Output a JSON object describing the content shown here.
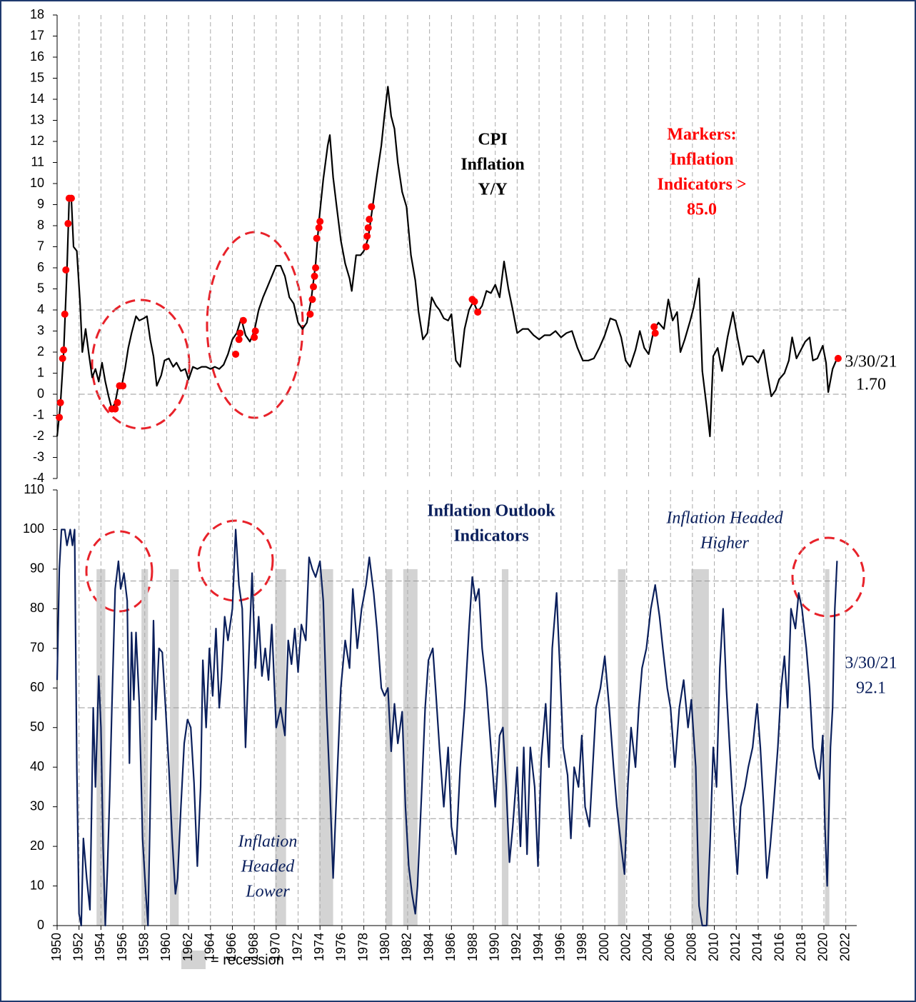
{
  "chart_data": [
    {
      "type": "line",
      "color": "#000000",
      "annotations": [
        [
          "CPI",
          "Inflation",
          "Y/Y"
        ],
        [
          "Markers:",
          "Inflation",
          "Indicators >",
          "85.0"
        ],
        [
          "3/30/21",
          "1.70"
        ]
      ],
      "xlim": [
        1950,
        2023
      ],
      "xticks": [
        1950,
        1952,
        1954,
        1956,
        1958,
        1960,
        1962,
        1964,
        1966,
        1968,
        1970,
        1972,
        1974,
        1976,
        1978,
        1980,
        1982,
        1984,
        1986,
        1988,
        1990,
        1992,
        1994,
        1996,
        1998,
        2000,
        2002,
        2004,
        2006,
        2008,
        2010,
        2012,
        2014,
        2016,
        2018,
        2020,
        2022
      ],
      "ylim": [
        -4,
        18
      ],
      "yticks": [
        -4,
        -3,
        -2,
        -1,
        0,
        1,
        2,
        3,
        4,
        5,
        6,
        7,
        8,
        9,
        10,
        11,
        12,
        13,
        14,
        15,
        16,
        17,
        18
      ],
      "reference_lines": [
        4,
        0
      ],
      "x": [
        1950.0,
        1950.3,
        1950.6,
        1950.9,
        1951.1,
        1951.3,
        1951.5,
        1951.8,
        1952.1,
        1952.3,
        1952.6,
        1952.9,
        1953.2,
        1953.5,
        1953.8,
        1954.1,
        1954.4,
        1954.7,
        1955.0,
        1955.3,
        1955.6,
        1955.9,
        1956.2,
        1956.5,
        1956.8,
        1957.2,
        1957.5,
        1957.9,
        1958.2,
        1958.5,
        1958.8,
        1959.1,
        1959.5,
        1959.8,
        1960.2,
        1960.6,
        1960.9,
        1961.3,
        1961.7,
        1962.0,
        1962.4,
        1962.8,
        1963.2,
        1963.6,
        1964.0,
        1964.4,
        1964.8,
        1965.2,
        1965.6,
        1966.0,
        1966.4,
        1966.8,
        1967.2,
        1967.6,
        1968.0,
        1968.4,
        1968.8,
        1969.2,
        1969.6,
        1970.0,
        1970.4,
        1970.8,
        1971.2,
        1971.6,
        1972.0,
        1972.4,
        1972.8,
        1973.2,
        1973.6,
        1973.9,
        1974.3,
        1974.7,
        1974.9,
        1975.2,
        1975.5,
        1975.9,
        1976.3,
        1976.7,
        1976.9,
        1977.3,
        1977.7,
        1978.0,
        1978.4,
        1978.8,
        1979.2,
        1979.6,
        1979.9,
        1980.2,
        1980.5,
        1980.8,
        1981.1,
        1981.5,
        1981.9,
        1982.3,
        1982.7,
        1983.0,
        1983.4,
        1983.8,
        1984.2,
        1984.6,
        1984.9,
        1985.3,
        1985.7,
        1986.0,
        1986.4,
        1986.8,
        1987.2,
        1987.6,
        1988.0,
        1988.4,
        1988.8,
        1989.2,
        1989.6,
        1990.0,
        1990.4,
        1990.8,
        1991.2,
        1991.6,
        1992.0,
        1992.5,
        1993.0,
        1993.5,
        1994.0,
        1994.5,
        1995.0,
        1995.5,
        1996.0,
        1996.5,
        1997.0,
        1997.5,
        1998.0,
        1998.5,
        1999.0,
        1999.5,
        2000.0,
        2000.5,
        2001.0,
        2001.5,
        2001.9,
        2002.3,
        2002.8,
        2003.2,
        2003.6,
        2004.0,
        2004.5,
        2004.9,
        2005.4,
        2005.8,
        2006.2,
        2006.6,
        2006.9,
        2007.3,
        2007.8,
        2008.1,
        2008.6,
        2008.9,
        2009.3,
        2009.6,
        2009.9,
        2010.3,
        2010.7,
        2011.2,
        2011.7,
        2012.1,
        2012.6,
        2013.0,
        2013.5,
        2014.0,
        2014.5,
        2014.9,
        2015.2,
        2015.6,
        2015.9,
        2016.4,
        2016.8,
        2017.1,
        2017.5,
        2017.9,
        2018.3,
        2018.7,
        2019.0,
        2019.4,
        2019.9,
        2020.2,
        2020.4,
        2020.8,
        2021.2
      ],
      "values": [
        -2.0,
        -0.5,
        2,
        5.9,
        9.3,
        9.3,
        7,
        6.8,
        4.3,
        2,
        3.1,
        1.9,
        0.8,
        1.2,
        0.6,
        1.5,
        0.6,
        -0.1,
        -0.7,
        -0.4,
        0.4,
        0.4,
        1.2,
        2.2,
        2.9,
        3.7,
        3.5,
        3.6,
        3.7,
        2.6,
        1.8,
        0.4,
        0.9,
        1.6,
        1.7,
        1.3,
        1.5,
        1.1,
        1.2,
        0.7,
        1.3,
        1.2,
        1.3,
        1.3,
        1.2,
        1.3,
        1.2,
        1.4,
        1.9,
        2.6,
        2.9,
        3.6,
        2.8,
        2.5,
        3.0,
        4.0,
        4.6,
        5.1,
        5.6,
        6.1,
        6.1,
        5.6,
        4.6,
        4.3,
        3.4,
        3.1,
        3.4,
        4.5,
        6.2,
        8.2,
        10.2,
        11.8,
        12.3,
        10.3,
        9.0,
        7.3,
        6.2,
        5.5,
        4.9,
        6.6,
        6.6,
        6.8,
        7.4,
        8.9,
        10.4,
        11.8,
        13.3,
        14.6,
        13.2,
        12.6,
        11.0,
        9.6,
        8.9,
        6.6,
        5.4,
        3.9,
        2.6,
        2.9,
        4.6,
        4.2,
        4.0,
        3.6,
        3.5,
        3.8,
        1.6,
        1.3,
        3.1,
        4.0,
        4.4,
        3.9,
        4.2,
        4.9,
        4.8,
        5.2,
        4.6,
        6.3,
        5.0,
        4.0,
        2.9,
        3.1,
        3.1,
        2.8,
        2.6,
        2.8,
        2.8,
        3.0,
        2.7,
        2.9,
        3.0,
        2.2,
        1.6,
        1.6,
        1.7,
        2.2,
        2.8,
        3.6,
        3.5,
        2.7,
        1.6,
        1.3,
        2.1,
        3.0,
        2.2,
        1.9,
        3.1,
        3.4,
        3.1,
        4.5,
        3.5,
        3.9,
        2.0,
        2.6,
        3.5,
        4.1,
        5.5,
        1.1,
        -0.6,
        -2.0,
        1.8,
        2.2,
        1.1,
        2.7,
        3.9,
        2.7,
        1.4,
        1.8,
        1.8,
        1.5,
        2.1,
        0.8,
        -0.1,
        0.2,
        0.7,
        1.0,
        1.6,
        2.7,
        1.7,
        2.1,
        2.5,
        2.7,
        1.6,
        1.7,
        2.3,
        1.5,
        0.1,
        1.2,
        1.7
      ],
      "markers": {
        "color": "#ff0000",
        "x": [
          1950.2,
          1950.3,
          1950.5,
          1950.6,
          1950.7,
          1950.8,
          1951.0,
          1951.1,
          1951.3,
          1955.0,
          1955.3,
          1955.5,
          1955.7,
          1956.0,
          1966.3,
          1966.6,
          1966.7,
          1967.0,
          1968.0,
          1968.1,
          1973.1,
          1973.3,
          1973.4,
          1973.5,
          1973.6,
          1973.7,
          1973.9,
          1974.0,
          1978.2,
          1978.3,
          1978.4,
          1978.5,
          1978.7,
          1987.9,
          1988.1,
          1988.4,
          2004.5,
          2004.6,
          2021.3
        ],
        "values": [
          -1.1,
          -0.4,
          1.7,
          2.1,
          3.8,
          5.9,
          8.1,
          9.3,
          9.3,
          -0.7,
          -0.7,
          -0.4,
          0.4,
          0.4,
          1.9,
          2.6,
          2.9,
          3.5,
          2.7,
          3.0,
          3.8,
          4.5,
          5.1,
          5.6,
          6.0,
          7.4,
          7.9,
          8.2,
          7.0,
          7.5,
          7.9,
          8.3,
          8.9,
          4.5,
          4.4,
          3.9,
          3.2,
          2.9,
          1.7
        ]
      }
    },
    {
      "type": "line",
      "color": "#0a1f5c",
      "annotations": [
        [
          "Inflation Outlook",
          "Indicators"
        ],
        [
          "Inflation Headed",
          "Higher"
        ],
        [
          "Inflation",
          "Headed",
          "Lower"
        ],
        [
          "3/30/21",
          "92.1"
        ]
      ],
      "legend_label": "= recession",
      "xlim": [
        1950,
        2023
      ],
      "xticks": [
        1950,
        1952,
        1954,
        1956,
        1958,
        1960,
        1962,
        1964,
        1966,
        1968,
        1970,
        1972,
        1974,
        1976,
        1978,
        1980,
        1982,
        1984,
        1986,
        1988,
        1990,
        1992,
        1994,
        1996,
        1998,
        2000,
        2002,
        2004,
        2006,
        2008,
        2010,
        2012,
        2014,
        2016,
        2018,
        2020,
        2022
      ],
      "ylim": [
        0,
        110
      ],
      "yticks": [
        0,
        10,
        20,
        30,
        40,
        50,
        60,
        70,
        80,
        90,
        100,
        110
      ],
      "reference_lines": [
        87,
        55,
        27
      ],
      "recession_top": 90,
      "recessions": [
        [
          1953.6,
          1954.4
        ],
        [
          1957.7,
          1958.3
        ],
        [
          1960.3,
          1961.1
        ],
        [
          1969.9,
          1970.9
        ],
        [
          1973.9,
          1975.2
        ],
        [
          1980.0,
          1980.6
        ],
        [
          1981.6,
          1982.9
        ],
        [
          1990.6,
          1991.2
        ],
        [
          2001.2,
          2001.9
        ],
        [
          2007.9,
          2009.5
        ],
        [
          2020.1,
          2020.5
        ]
      ],
      "x": [
        1950.0,
        1950.2,
        1950.4,
        1950.7,
        1950.9,
        1951.2,
        1951.4,
        1951.6,
        1951.8,
        1952.0,
        1952.2,
        1952.4,
        1952.7,
        1953.0,
        1953.3,
        1953.5,
        1953.8,
        1954.0,
        1954.2,
        1954.4,
        1954.6,
        1954.8,
        1955.0,
        1955.3,
        1955.6,
        1955.8,
        1956.1,
        1956.4,
        1956.6,
        1956.8,
        1957.0,
        1957.2,
        1957.5,
        1957.8,
        1958.1,
        1958.3,
        1958.5,
        1958.8,
        1959.0,
        1959.3,
        1959.6,
        1959.9,
        1960.2,
        1960.5,
        1960.8,
        1961.0,
        1961.3,
        1961.6,
        1961.9,
        1962.2,
        1962.5,
        1962.8,
        1963.1,
        1963.3,
        1963.6,
        1963.9,
        1964.2,
        1964.5,
        1964.8,
        1965.0,
        1965.3,
        1965.6,
        1966.0,
        1966.3,
        1966.6,
        1966.9,
        1967.2,
        1967.5,
        1967.8,
        1968.1,
        1968.4,
        1968.7,
        1969.0,
        1969.3,
        1969.6,
        1970.0,
        1970.4,
        1970.8,
        1971.1,
        1971.4,
        1971.7,
        1972.0,
        1972.3,
        1972.7,
        1973.0,
        1973.3,
        1973.6,
        1974.0,
        1974.3,
        1974.6,
        1974.9,
        1975.2,
        1975.6,
        1975.9,
        1976.3,
        1976.7,
        1977.0,
        1977.4,
        1977.8,
        1978.2,
        1978.5,
        1978.9,
        1979.2,
        1979.6,
        1979.9,
        1980.2,
        1980.5,
        1980.8,
        1981.1,
        1981.5,
        1981.8,
        1982.1,
        1982.4,
        1982.7,
        1982.9,
        1983.3,
        1983.6,
        1983.9,
        1984.3,
        1984.6,
        1984.9,
        1985.3,
        1985.7,
        1986.0,
        1986.4,
        1986.8,
        1987.2,
        1987.6,
        1987.9,
        1988.2,
        1988.5,
        1988.8,
        1989.2,
        1989.6,
        1990.0,
        1990.4,
        1990.7,
        1991.0,
        1991.3,
        1991.6,
        1992.0,
        1992.3,
        1992.6,
        1992.9,
        1993.2,
        1993.6,
        1993.9,
        1994.2,
        1994.6,
        1994.9,
        1995.2,
        1995.6,
        1995.9,
        1996.2,
        1996.6,
        1996.9,
        1997.2,
        1997.6,
        1997.9,
        1998.2,
        1998.6,
        1998.9,
        1999.2,
        1999.6,
        2000.0,
        2000.4,
        2000.8,
        2001.1,
        2001.5,
        2001.8,
        2002.1,
        2002.4,
        2002.8,
        2003.1,
        2003.4,
        2003.8,
        2004.2,
        2004.6,
        2005.0,
        2005.3,
        2005.7,
        2006.0,
        2006.4,
        2006.8,
        2007.2,
        2007.6,
        2007.9,
        2008.3,
        2008.6,
        2008.9,
        2009.3,
        2009.6,
        2009.9,
        2010.2,
        2010.5,
        2010.8,
        2011.1,
        2011.4,
        2011.8,
        2012.1,
        2012.4,
        2012.8,
        2013.1,
        2013.5,
        2013.9,
        2014.2,
        2014.5,
        2014.8,
        2015.1,
        2015.4,
        2015.8,
        2016.1,
        2016.4,
        2016.7,
        2017.0,
        2017.4,
        2017.7,
        2018.0,
        2018.4,
        2018.7,
        2019.0,
        2019.3,
        2019.6,
        2019.9,
        2020.1,
        2020.3,
        2020.6,
        2020.8,
        2021.0,
        2021.2
      ],
      "values": [
        62,
        90,
        100,
        100,
        96,
        100,
        96,
        100,
        40,
        3,
        0,
        22,
        12,
        4,
        55,
        35,
        63,
        50,
        20,
        0,
        15,
        33,
        55,
        85,
        92,
        85,
        89,
        82,
        41,
        74,
        57,
        74,
        56,
        22,
        8,
        0,
        30,
        77,
        52,
        70,
        69,
        55,
        40,
        22,
        8,
        12,
        30,
        46,
        52,
        50,
        36,
        15,
        35,
        67,
        50,
        70,
        58,
        75,
        55,
        62,
        78,
        72,
        80,
        100,
        86,
        80,
        45,
        68,
        89,
        65,
        78,
        63,
        70,
        62,
        76,
        50,
        55,
        48,
        72,
        66,
        75,
        64,
        76,
        72,
        93,
        90,
        88,
        92,
        82,
        55,
        35,
        12,
        40,
        60,
        72,
        65,
        85,
        70,
        80,
        86,
        93,
        84,
        75,
        60,
        58,
        60,
        44,
        56,
        46,
        54,
        30,
        15,
        8,
        3,
        10,
        35,
        55,
        67,
        70,
        58,
        45,
        30,
        45,
        25,
        18,
        40,
        55,
        75,
        88,
        82,
        85,
        70,
        60,
        45,
        30,
        48,
        50,
        35,
        16,
        25,
        40,
        20,
        45,
        18,
        45,
        35,
        15,
        42,
        56,
        40,
        70,
        84,
        65,
        45,
        38,
        22,
        40,
        35,
        48,
        30,
        25,
        40,
        55,
        60,
        68,
        55,
        40,
        30,
        20,
        13,
        35,
        50,
        40,
        55,
        65,
        70,
        80,
        86,
        78,
        70,
        60,
        55,
        40,
        55,
        62,
        50,
        57,
        40,
        5,
        0,
        0,
        20,
        45,
        35,
        65,
        80,
        60,
        45,
        25,
        13,
        30,
        35,
        40,
        45,
        56,
        45,
        30,
        12,
        20,
        30,
        45,
        60,
        68,
        55,
        80,
        75,
        84,
        80,
        70,
        60,
        45,
        40,
        37,
        48,
        25,
        10,
        45,
        55,
        80,
        92.1
      ]
    }
  ]
}
